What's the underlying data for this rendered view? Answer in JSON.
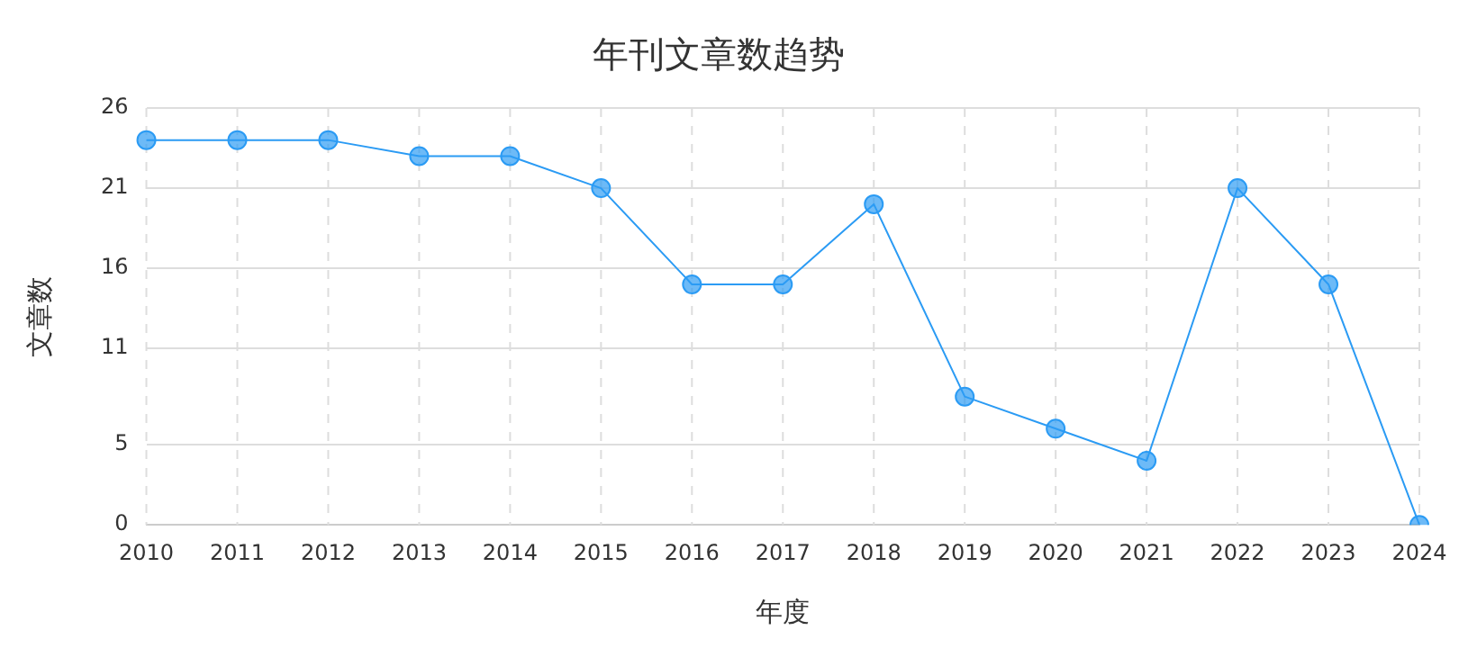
{
  "chart_data": {
    "type": "line",
    "title": "年刊文章数趋势",
    "xlabel": "年度",
    "ylabel": "文章数",
    "categories": [
      "2010",
      "2011",
      "2012",
      "2013",
      "2014",
      "2015",
      "2016",
      "2017",
      "2018",
      "2019",
      "2020",
      "2021",
      "2022",
      "2023",
      "2024"
    ],
    "series": [
      {
        "color": "#2b9bf4",
        "values": [
          24,
          24,
          24,
          23,
          23,
          21,
          15,
          15,
          20,
          8,
          6,
          4,
          21,
          15,
          0
        ]
      }
    ],
    "ylim": [
      0,
      26
    ],
    "yticks": [
      0,
      5,
      11,
      16,
      21,
      26
    ],
    "grid": true,
    "marker": "circle",
    "line_style": "solid",
    "legend": false
  }
}
